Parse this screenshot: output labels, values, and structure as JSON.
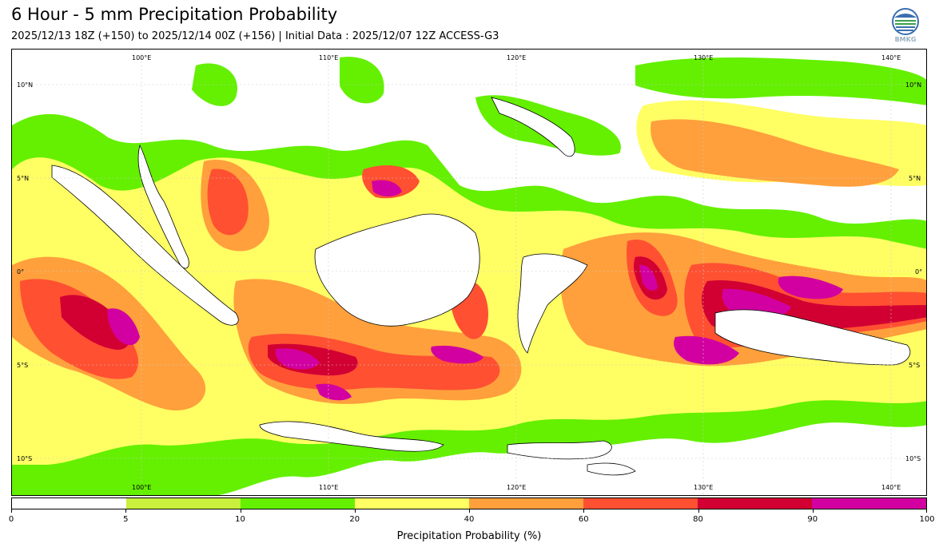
{
  "title": "6 Hour - 5 mm Precipitation Probability",
  "subtitle": "2025/12/13 18Z (+150) to 2025/12/14 00Z (+156) | Initial Data : 2025/12/07 12Z ACCESS-G3",
  "logo": {
    "icon": "bmkg-logo-icon",
    "text": "BMKG"
  },
  "map": {
    "lon_labels": [
      "100°E",
      "110°E",
      "120°E",
      "130°E",
      "140°E"
    ],
    "lat_labels": [
      "10°N",
      "5°N",
      "0°",
      "5°S",
      "10°S"
    ]
  },
  "colorbar": {
    "levels": [
      "0",
      "5",
      "10",
      "20",
      "40",
      "60",
      "80",
      "90",
      "100"
    ],
    "colors": [
      "#ffffff",
      "#c8f03c",
      "#64f000",
      "#ffff64",
      "#ffa03c",
      "#ff5032",
      "#d20032",
      "#d200a0"
    ],
    "title": "Precipitation Probability (%)"
  }
}
